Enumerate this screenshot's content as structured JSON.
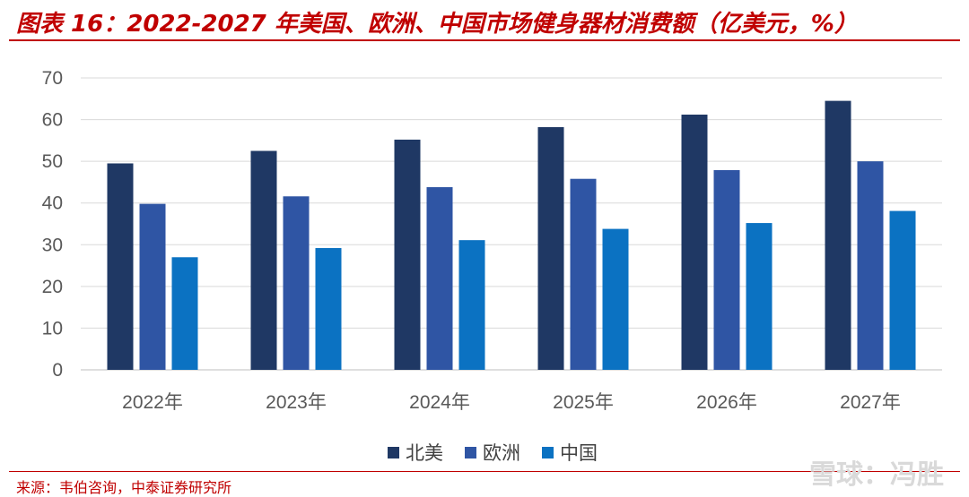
{
  "title": "图表 16：2022-2027 年美国、欧洲、中国市场健身器材消费额（亿美元，%）",
  "source": "来源：韦伯咨询，中泰证券研究所",
  "watermark": "雪球：冯胜",
  "colors": {
    "accent": "#c00000",
    "north_america": "#1f3864",
    "europe": "#2f55a4",
    "china": "#0b72c2"
  },
  "chart_data": {
    "type": "bar",
    "categories": [
      "2022年",
      "2023年",
      "2024年",
      "2025年",
      "2026年",
      "2027年"
    ],
    "series": [
      {
        "name": "北美",
        "values": [
          49.5,
          52.5,
          55.2,
          58.2,
          61.2,
          64.5
        ]
      },
      {
        "name": "欧洲",
        "values": [
          39.8,
          41.6,
          43.8,
          45.8,
          47.9,
          50.0
        ]
      },
      {
        "name": "中国",
        "values": [
          27.0,
          29.2,
          31.1,
          33.8,
          35.2,
          38.1
        ]
      }
    ],
    "yticks": [
      0,
      10,
      20,
      30,
      40,
      50,
      60,
      70
    ],
    "ylim": [
      0,
      70
    ],
    "grid": true,
    "legend_position": "bottom"
  }
}
